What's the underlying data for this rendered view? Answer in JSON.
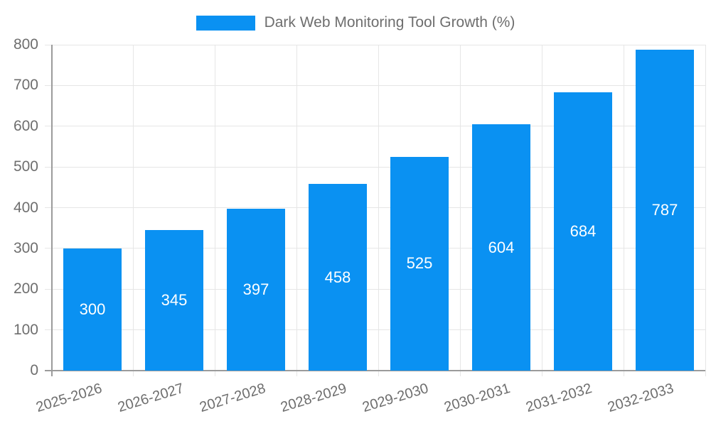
{
  "chart_data": {
    "type": "bar",
    "title": "Dark Web Monitoring Tool Growth (%)",
    "categories": [
      "2025-2026",
      "2026-2027",
      "2027-2028",
      "2028-2029",
      "2029-2030",
      "2030-2031",
      "2031-2032",
      "2032-2033"
    ],
    "values": [
      300,
      345,
      397,
      458,
      525,
      604,
      684,
      787
    ],
    "xlabel": "",
    "ylabel": "",
    "ylim": [
      0,
      800
    ],
    "yticks": [
      0,
      100,
      200,
      300,
      400,
      500,
      600,
      700,
      800
    ],
    "grid": true,
    "legend": {
      "position": "top",
      "label": "Dark Web Monitoring Tool Growth (%)"
    },
    "colors": {
      "bar": "#0a91f2",
      "grid": "#e6e6e6",
      "axis": "#9b9b9b",
      "tick_text": "#6e6e6e",
      "value_label": "#ffffff",
      "background": "#ffffff"
    }
  }
}
